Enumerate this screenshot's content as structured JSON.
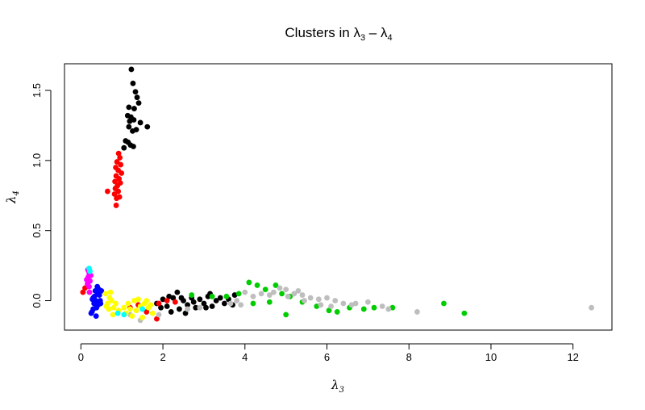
{
  "chart_data": {
    "type": "scatter",
    "title": "Clusters in λ3 – λ4",
    "title_parts": {
      "prefix": "Clusters in ",
      "a": "λ",
      "a_sub": "3",
      "sep": " – ",
      "b": "λ",
      "b_sub": "4"
    },
    "xlabel": {
      "symbol": "λ",
      "sub": "3"
    },
    "ylabel": {
      "symbol": "λ",
      "sub": "4"
    },
    "xlim": [
      -0.4,
      12.95
    ],
    "ylim": [
      -0.21,
      1.69
    ],
    "xticks": [
      0,
      2,
      4,
      6,
      8,
      10,
      12
    ],
    "xtick_labels": [
      "0",
      "2",
      "4",
      "6",
      "8",
      "10",
      "12"
    ],
    "yticks": [
      0.0,
      0.5,
      1.0,
      1.5
    ],
    "ytick_labels": [
      "0.0",
      "0.5",
      "1.0",
      "1.5"
    ],
    "grid": false,
    "legend": "none",
    "series": [
      {
        "color": "#000000",
        "points": [
          [
            1.23,
            1.65
          ],
          [
            1.27,
            1.55
          ],
          [
            1.33,
            1.49
          ],
          [
            1.37,
            1.45
          ],
          [
            1.41,
            1.41
          ],
          [
            1.17,
            1.38
          ],
          [
            1.3,
            1.37
          ],
          [
            1.14,
            1.32
          ],
          [
            1.22,
            1.31
          ],
          [
            1.19,
            1.28
          ],
          [
            1.29,
            1.29
          ],
          [
            1.17,
            1.24
          ],
          [
            1.35,
            1.22
          ],
          [
            1.26,
            1.21
          ],
          [
            1.45,
            1.27
          ],
          [
            1.62,
            1.24
          ],
          [
            1.09,
            1.14
          ],
          [
            1.15,
            1.13
          ],
          [
            1.21,
            1.11
          ],
          [
            1.28,
            1.1
          ],
          [
            1.05,
            1.09
          ],
          [
            1.85,
            -0.02
          ],
          [
            2.0,
            0.01
          ],
          [
            2.1,
            -0.04
          ],
          [
            2.25,
            0.02
          ],
          [
            2.35,
            0.06
          ],
          [
            2.4,
            -0.06
          ],
          [
            2.5,
            0.0
          ],
          [
            2.6,
            -0.03
          ],
          [
            2.7,
            0.02
          ],
          [
            2.8,
            -0.05
          ],
          [
            2.9,
            0.01
          ],
          [
            3.0,
            -0.02
          ],
          [
            3.1,
            0.03
          ],
          [
            3.2,
            -0.04
          ],
          [
            3.3,
            0.0
          ],
          [
            3.4,
            0.02
          ],
          [
            3.5,
            -0.02
          ],
          [
            3.6,
            0.01
          ],
          [
            3.7,
            -0.03
          ],
          [
            3.15,
            0.05
          ],
          [
            2.55,
            -0.09
          ],
          [
            2.2,
            -0.08
          ],
          [
            1.95,
            -0.05
          ],
          [
            3.75,
            0.04
          ],
          [
            2.45,
            0.02
          ],
          [
            2.75,
            -0.01
          ],
          [
            3.05,
            -0.05
          ],
          [
            2.15,
            0.03
          ]
        ]
      },
      {
        "color": "#ff0000",
        "points": [
          [
            0.92,
            1.05
          ],
          [
            0.95,
            1.02
          ],
          [
            0.88,
            0.99
          ],
          [
            0.97,
            0.97
          ],
          [
            0.85,
            0.95
          ],
          [
            0.91,
            0.93
          ],
          [
            0.99,
            0.91
          ],
          [
            0.86,
            0.89
          ],
          [
            0.93,
            0.87
          ],
          [
            0.83,
            0.85
          ],
          [
            0.96,
            0.84
          ],
          [
            0.89,
            0.82
          ],
          [
            0.84,
            0.8
          ],
          [
            0.91,
            0.78
          ],
          [
            0.82,
            0.76
          ],
          [
            0.65,
            0.78
          ],
          [
            0.86,
            0.68
          ],
          [
            0.94,
            0.74
          ],
          [
            0.87,
            0.73
          ],
          [
            0.05,
            0.06
          ],
          [
            0.1,
            0.09
          ],
          [
            1.2,
            -0.05
          ],
          [
            1.4,
            -0.03
          ],
          [
            1.6,
            -0.08
          ],
          [
            1.9,
            -0.02
          ],
          [
            2.1,
            0.0
          ],
          [
            1.85,
            -0.13
          ],
          [
            2.3,
            -0.01
          ]
        ]
      },
      {
        "color": "#00cd00",
        "points": [
          [
            4.1,
            0.13
          ],
          [
            4.3,
            0.11
          ],
          [
            4.5,
            0.08
          ],
          [
            4.75,
            0.11
          ],
          [
            4.9,
            0.05
          ],
          [
            5.1,
            0.03
          ],
          [
            5.4,
            -0.01
          ],
          [
            5.75,
            -0.04
          ],
          [
            6.05,
            -0.07
          ],
          [
            6.25,
            -0.08
          ],
          [
            6.55,
            -0.05
          ],
          [
            7.15,
            -0.05
          ],
          [
            7.6,
            -0.05
          ],
          [
            8.85,
            -0.02
          ],
          [
            9.35,
            -0.09
          ],
          [
            5.0,
            -0.1
          ],
          [
            3.85,
            0.05
          ],
          [
            3.55,
            0.03
          ],
          [
            3.2,
            0.03
          ],
          [
            4.2,
            -0.02
          ],
          [
            2.7,
            0.04
          ],
          [
            4.6,
            -0.01
          ],
          [
            6.9,
            -0.06
          ]
        ]
      },
      {
        "color": "#bebebe",
        "points": [
          [
            4.0,
            0.06
          ],
          [
            4.4,
            0.05
          ],
          [
            4.7,
            0.06
          ],
          [
            5.0,
            0.08
          ],
          [
            5.2,
            0.05
          ],
          [
            5.4,
            0.04
          ],
          [
            5.6,
            0.02
          ],
          [
            5.8,
            0.01
          ],
          [
            6.0,
            0.02
          ],
          [
            6.2,
            0.0
          ],
          [
            6.4,
            -0.02
          ],
          [
            6.6,
            -0.03
          ],
          [
            7.0,
            -0.01
          ],
          [
            7.35,
            -0.04
          ],
          [
            7.5,
            -0.06
          ],
          [
            8.2,
            -0.08
          ],
          [
            12.45,
            -0.05
          ],
          [
            3.9,
            -0.03
          ],
          [
            4.2,
            0.03
          ],
          [
            5.05,
            0.03
          ],
          [
            5.45,
            0.0
          ],
          [
            5.85,
            -0.03
          ],
          [
            6.7,
            -0.02
          ],
          [
            3.8,
            0.0
          ],
          [
            1.9,
            -0.1
          ],
          [
            2.6,
            -0.06
          ],
          [
            2.9,
            -0.05
          ],
          [
            1.5,
            -0.12
          ],
          [
            1.2,
            -0.1
          ],
          [
            1.45,
            -0.14
          ],
          [
            3.65,
            -0.02
          ],
          [
            4.85,
            0.09
          ],
          [
            5.3,
            0.07
          ],
          [
            6.1,
            -0.04
          ],
          [
            4.6,
            0.04
          ]
        ]
      },
      {
        "color": "#0000ff",
        "points": [
          [
            0.35,
            0.07
          ],
          [
            0.4,
            0.1
          ],
          [
            0.45,
            0.04
          ],
          [
            0.3,
            0.02
          ],
          [
            0.5,
            0.07
          ],
          [
            0.32,
            -0.02
          ],
          [
            0.38,
            -0.05
          ],
          [
            0.27,
            -0.08
          ],
          [
            0.42,
            -0.03
          ],
          [
            0.47,
            0.0
          ],
          [
            0.33,
            0.03
          ],
          [
            0.25,
            -0.09
          ],
          [
            0.37,
            -0.11
          ],
          [
            0.3,
            -0.06
          ],
          [
            0.41,
            0.05
          ],
          [
            0.48,
            -0.02
          ],
          [
            0.36,
            0.0
          ],
          [
            0.44,
            0.08
          ],
          [
            0.28,
            0.01
          ]
        ]
      },
      {
        "color": "#ffff00",
        "points": [
          [
            0.6,
            0.05
          ],
          [
            0.7,
            0.02
          ],
          [
            0.65,
            -0.02
          ],
          [
            0.75,
            0.0
          ],
          [
            0.68,
            -0.06
          ],
          [
            0.78,
            -0.1
          ],
          [
            0.72,
            0.06
          ],
          [
            0.62,
            -0.04
          ],
          [
            0.8,
            -0.05
          ],
          [
            1.15,
            -0.02
          ],
          [
            1.3,
            0.0
          ],
          [
            1.45,
            -0.04
          ],
          [
            1.55,
            -0.02
          ],
          [
            1.35,
            -0.07
          ],
          [
            1.65,
            -0.05
          ],
          [
            1.75,
            -0.09
          ],
          [
            1.25,
            -0.11
          ],
          [
            1.05,
            -0.05
          ],
          [
            1.5,
            -0.12
          ],
          [
            1.4,
            0.01
          ],
          [
            1.6,
            0.0
          ],
          [
            1.7,
            -0.03
          ],
          [
            1.2,
            -0.06
          ],
          [
            0.85,
            -0.02
          ],
          [
            0.92,
            -0.07
          ],
          [
            1.1,
            -0.09
          ]
        ]
      },
      {
        "color": "#ff00ff",
        "points": [
          [
            0.2,
            0.2
          ],
          [
            0.18,
            0.17
          ],
          [
            0.22,
            0.14
          ],
          [
            0.16,
            0.12
          ],
          [
            0.2,
            0.1
          ],
          [
            0.14,
            0.15
          ],
          [
            0.24,
            0.18
          ],
          [
            0.17,
            0.22
          ],
          [
            0.21,
            0.06
          ]
        ]
      },
      {
        "color": "#00ffff",
        "points": [
          [
            0.2,
            0.23
          ],
          [
            0.22,
            0.21
          ],
          [
            0.9,
            -0.09
          ],
          [
            1.05,
            -0.1
          ],
          [
            1.5,
            -0.06
          ]
        ]
      }
    ]
  }
}
